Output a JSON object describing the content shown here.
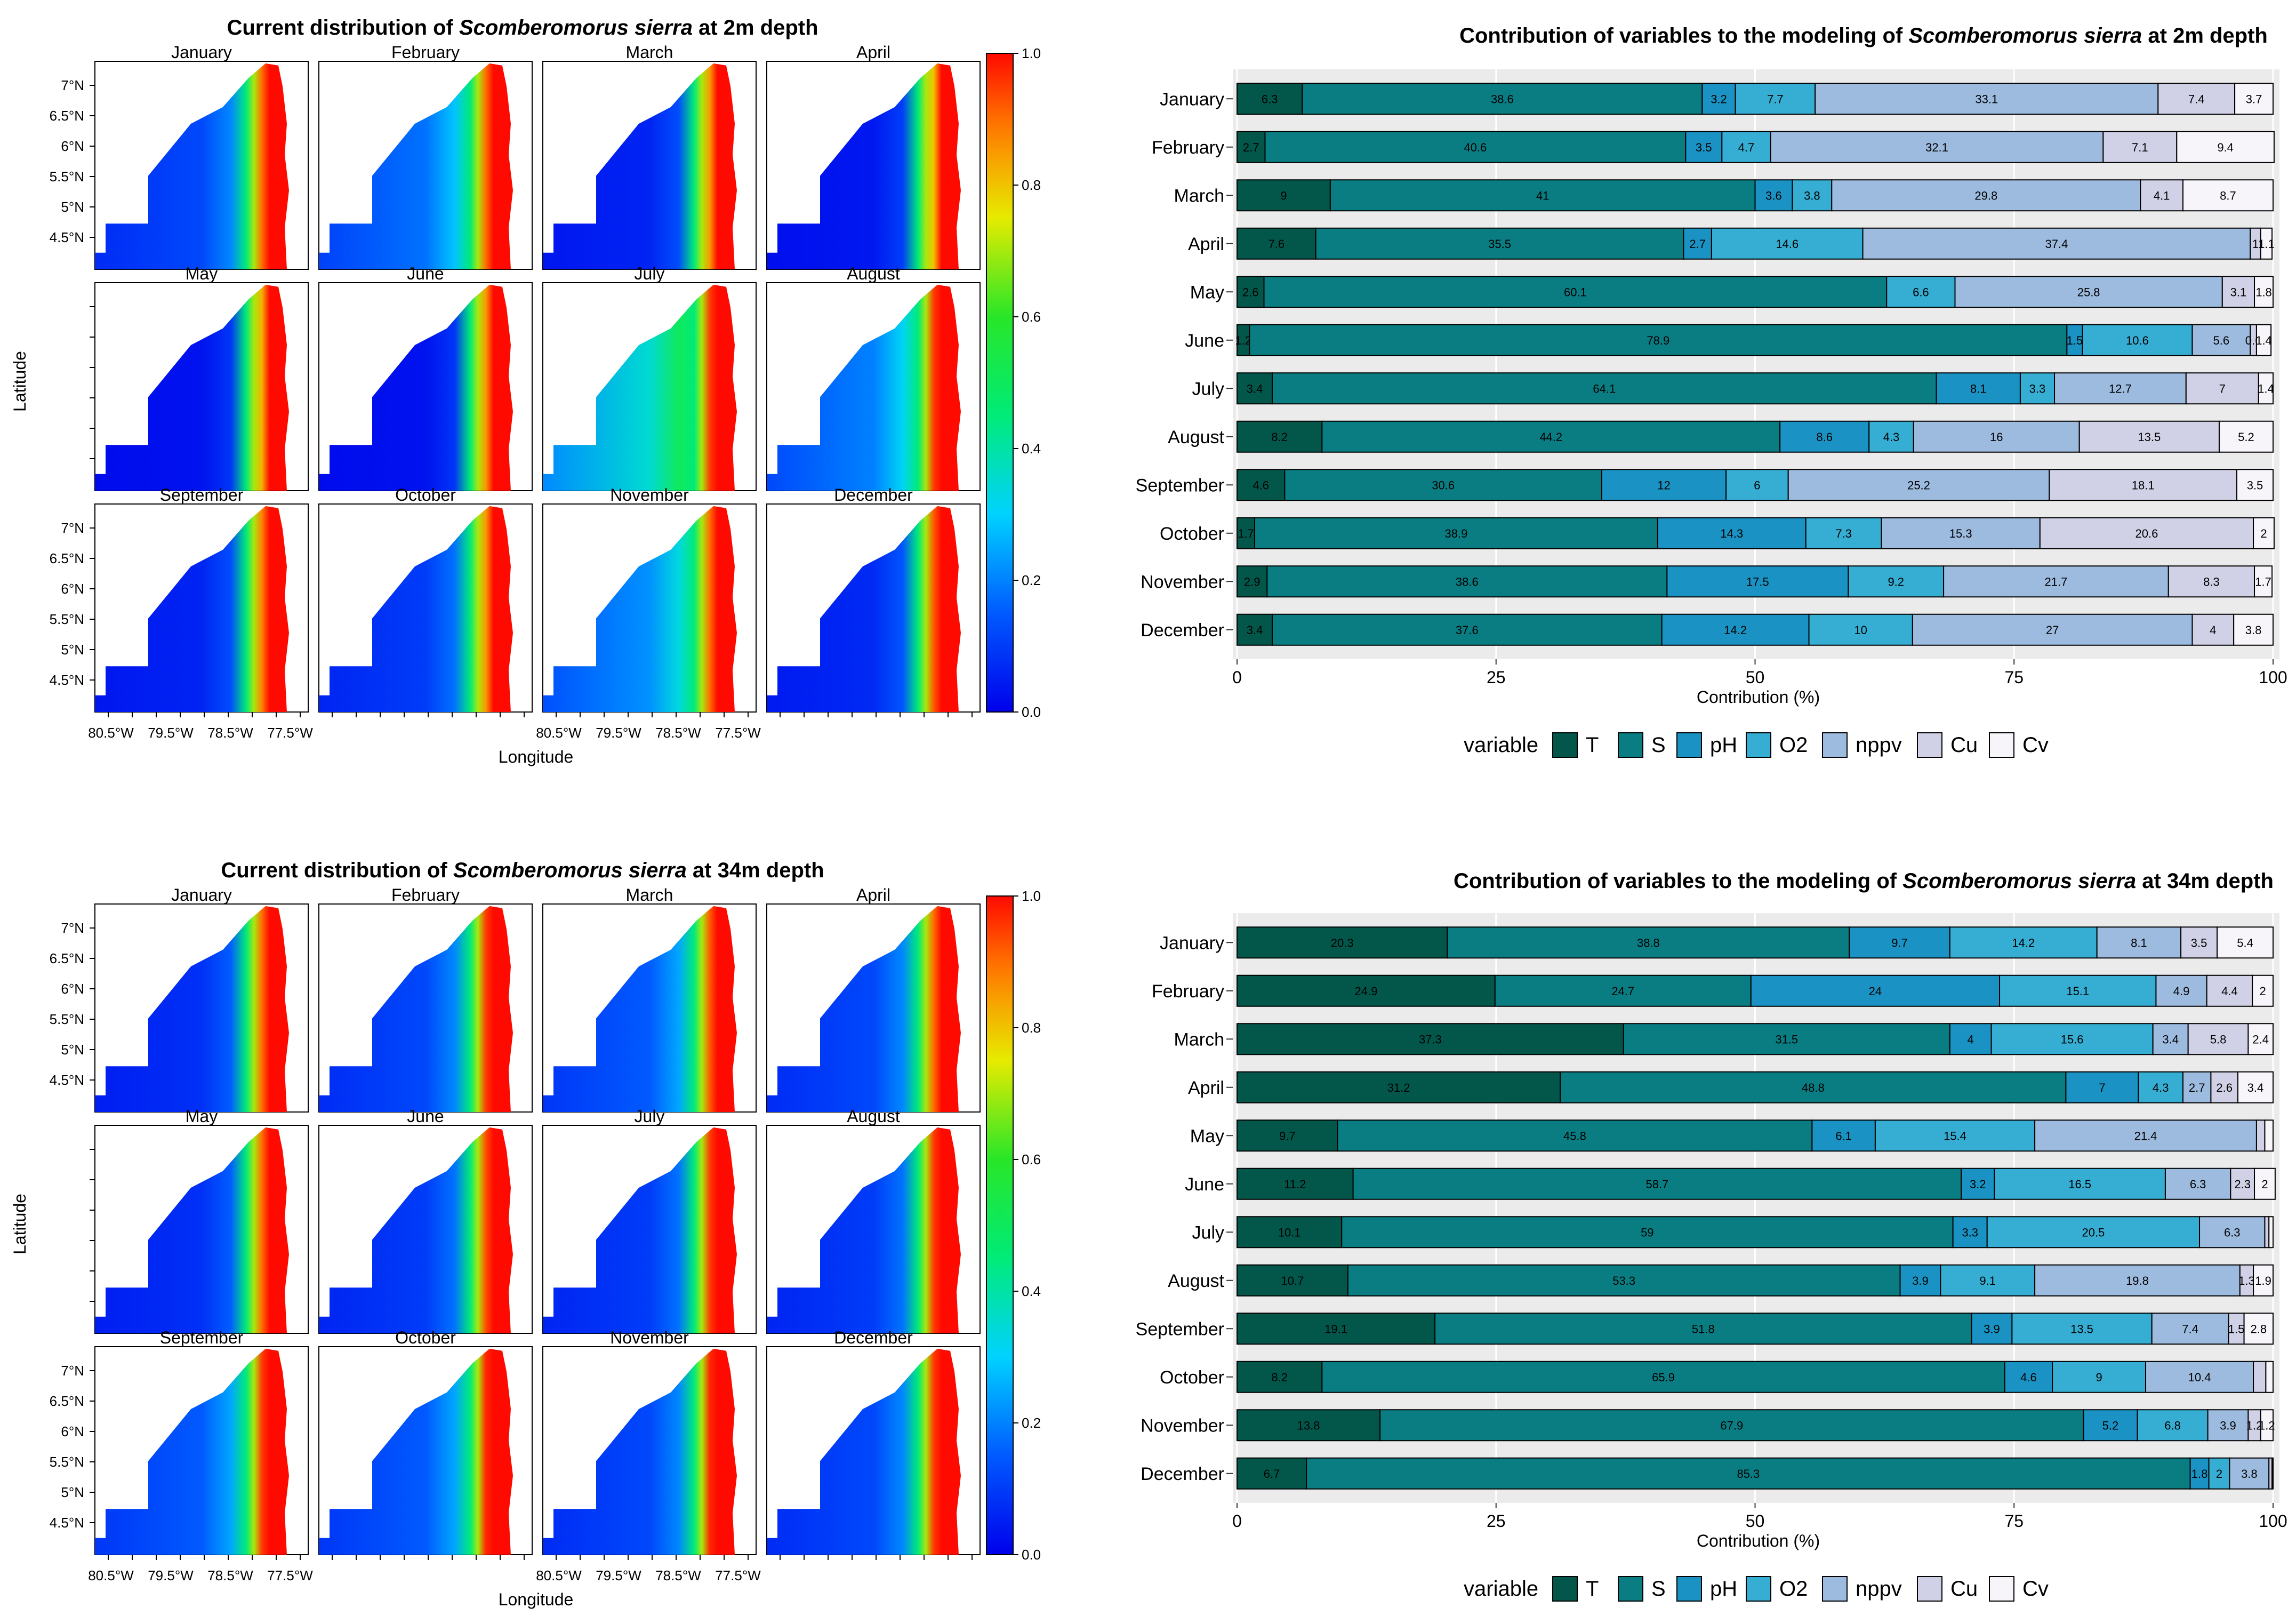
{
  "colors": {
    "T": "#03574a",
    "S": "#0a7d82",
    "pH": "#1a93c4",
    "O2": "#36aed3",
    "nppv": "#9dbbdf",
    "Cu": "#d0d1e6",
    "Cv": "#f7f4fa",
    "ocean": "#0b2de8",
    "land": "#ffffff",
    "bar_bg": "#ebebeb"
  },
  "maps": [
    {
      "title_pre": "Current distribution of ",
      "title_species": "Scomberomorus sierra",
      "title_post": " at 2m depth",
      "xlabel": "Longitude",
      "ylabel": "Latitude",
      "lat_ticks": [
        "7°N",
        "6.5°N",
        "6°N",
        "5.5°N",
        "5°N",
        "4.5°N"
      ],
      "lon_ticks": [
        "80.5°W",
        "79.5°W",
        "78.5°W",
        "77.5°W"
      ],
      "colorbar_ticks": [
        "1.0",
        "0.8",
        "0.6",
        "0.4",
        "0.2",
        "0.0"
      ],
      "panels": [
        {
          "month": "January",
          "offshore": 0.12,
          "coastal": 0.9
        },
        {
          "month": "February",
          "offshore": 0.18,
          "coastal": 0.9
        },
        {
          "month": "March",
          "offshore": 0.06,
          "coastal": 0.85
        },
        {
          "month": "April",
          "offshore": 0.04,
          "coastal": 0.8
        },
        {
          "month": "May",
          "offshore": 0.03,
          "coastal": 0.82
        },
        {
          "month": "June",
          "offshore": 0.03,
          "coastal": 0.85
        },
        {
          "month": "July",
          "offshore": 0.35,
          "coastal": 0.95
        },
        {
          "month": "August",
          "offshore": 0.2,
          "coastal": 0.95
        },
        {
          "month": "September",
          "offshore": 0.06,
          "coastal": 0.88
        },
        {
          "month": "October",
          "offshore": 0.1,
          "coastal": 0.85
        },
        {
          "month": "November",
          "offshore": 0.22,
          "coastal": 0.9
        },
        {
          "month": "December",
          "offshore": 0.07,
          "coastal": 0.92
        }
      ]
    },
    {
      "title_pre": "Current distribution of ",
      "title_species": "Scomberomorus sierra",
      "title_post": " at 34m depth",
      "xlabel": "Longitude",
      "ylabel": "Latitude",
      "lat_ticks": [
        "7°N",
        "6.5°N",
        "6°N",
        "5.5°N",
        "5°N",
        "4.5°N"
      ],
      "lon_ticks": [
        "80.5°W",
        "79.5°W",
        "78.5°W",
        "77.5°W"
      ],
      "colorbar_ticks": [
        "1.0",
        "0.8",
        "0.6",
        "0.4",
        "0.2",
        "0.0"
      ],
      "panels": [
        {
          "month": "January",
          "offshore": 0.08,
          "coastal": 0.9
        },
        {
          "month": "February",
          "offshore": 0.12,
          "coastal": 0.95
        },
        {
          "month": "March",
          "offshore": 0.15,
          "coastal": 0.92
        },
        {
          "month": "April",
          "offshore": 0.12,
          "coastal": 0.9
        },
        {
          "month": "May",
          "offshore": 0.08,
          "coastal": 0.9
        },
        {
          "month": "June",
          "offshore": 0.1,
          "coastal": 0.93
        },
        {
          "month": "July",
          "offshore": 0.1,
          "coastal": 0.95
        },
        {
          "month": "August",
          "offshore": 0.1,
          "coastal": 0.95
        },
        {
          "month": "September",
          "offshore": 0.15,
          "coastal": 0.95
        },
        {
          "month": "October",
          "offshore": 0.15,
          "coastal": 0.97
        },
        {
          "month": "November",
          "offshore": 0.12,
          "coastal": 0.97
        },
        {
          "month": "December",
          "offshore": 0.12,
          "coastal": 0.95
        }
      ]
    }
  ],
  "chart_data": [
    {
      "type": "bar",
      "orientation": "horizontal",
      "stacked": true,
      "title_pre": "Contribution of variables to the modeling of ",
      "title_species": "Scomberomorus sierra",
      "title_post": " at 2m depth",
      "xlabel": "Contribution (%)",
      "ylabel": "",
      "xlim": [
        0,
        100
      ],
      "xticks": [
        0,
        25,
        50,
        75,
        100
      ],
      "legend_title": "variable",
      "legend_position": "bottom",
      "variables": [
        "T",
        "S",
        "pH",
        "O2",
        "nppv",
        "Cu",
        "Cv"
      ],
      "categories": [
        "January",
        "February",
        "March",
        "April",
        "May",
        "June",
        "July",
        "August",
        "September",
        "October",
        "November",
        "December"
      ],
      "series": [
        {
          "name": "T",
          "values": [
            6.3,
            2.7,
            9,
            7.6,
            2.6,
            1.2,
            3.4,
            8.2,
            4.6,
            1.7,
            2.9,
            3.4
          ]
        },
        {
          "name": "S",
          "values": [
            38.6,
            40.6,
            41,
            35.5,
            60.1,
            78.9,
            64.1,
            44.2,
            30.6,
            38.9,
            38.6,
            37.6
          ]
        },
        {
          "name": "pH",
          "values": [
            3.2,
            3.5,
            3.6,
            2.7,
            0,
            1.5,
            8.1,
            8.6,
            12,
            14.3,
            17.5,
            14.2
          ]
        },
        {
          "name": "O2",
          "values": [
            7.7,
            4.7,
            3.8,
            14.6,
            6.6,
            10.6,
            3.3,
            4.3,
            6,
            7.3,
            9.2,
            10
          ]
        },
        {
          "name": "nppv",
          "values": [
            33.1,
            32.1,
            29.8,
            37.4,
            25.8,
            5.6,
            12.7,
            16,
            25.2,
            15.3,
            21.7,
            27
          ]
        },
        {
          "name": "Cu",
          "values": [
            7.4,
            7.1,
            4.1,
            1,
            3.1,
            0.6,
            7,
            13.5,
            18.1,
            20.6,
            8.3,
            4
          ]
        },
        {
          "name": "Cv",
          "values": [
            3.7,
            9.4,
            8.7,
            1.1,
            1.8,
            1.4,
            1.4,
            5.2,
            3.5,
            2,
            1.7,
            3.8
          ]
        }
      ],
      "labels": [
        [
          "6.3",
          "38.6",
          "3.2",
          "7.7",
          "33.1",
          "7.4",
          "3.7"
        ],
        [
          "2.7",
          "40.6",
          "3.5",
          "4.7",
          "32.1",
          "7.1",
          "9.4"
        ],
        [
          "9",
          "41",
          "3.6",
          "3.8",
          "29.8",
          "4.1",
          "8.7"
        ],
        [
          "7.6",
          "35.5",
          "2.7",
          "14.6",
          "37.4",
          "1",
          "1.1"
        ],
        [
          "2.6",
          "60.1",
          "",
          "6.6",
          "25.8",
          "3.1",
          "1.8"
        ],
        [
          "1.2",
          "78.9",
          "1.5",
          "10.6",
          "5.6",
          "0.6",
          "1.4"
        ],
        [
          "3.4",
          "64.1",
          "8.1",
          "3.3",
          "12.7",
          "7",
          "1.4"
        ],
        [
          "8.2",
          "44.2",
          "8.6",
          "4.3",
          "16",
          "13.5",
          "5.2"
        ],
        [
          "4.6",
          "30.6",
          "12",
          "6",
          "25.2",
          "18.1",
          "3.5"
        ],
        [
          "1.7",
          "38.9",
          "14.3",
          "7.3",
          "15.3",
          "20.6",
          "2"
        ],
        [
          "2.9",
          "38.6",
          "17.5",
          "9.2",
          "21.7",
          "8.3",
          "1.7"
        ],
        [
          "3.4",
          "37.6",
          "14.2",
          "10",
          "27",
          "4",
          "3.8"
        ]
      ]
    },
    {
      "type": "bar",
      "orientation": "horizontal",
      "stacked": true,
      "title_pre": "Contribution of variables to the modeling of ",
      "title_species": "Scomberomorus sierra",
      "title_post": " at 34m depth",
      "xlabel": "Contribution (%)",
      "ylabel": "",
      "xlim": [
        0,
        100
      ],
      "xticks": [
        0,
        25,
        50,
        75,
        100
      ],
      "legend_title": "variable",
      "legend_position": "bottom",
      "variables": [
        "T",
        "S",
        "pH",
        "O2",
        "nppv",
        "Cu",
        "Cv"
      ],
      "categories": [
        "January",
        "February",
        "March",
        "April",
        "May",
        "June",
        "July",
        "August",
        "September",
        "October",
        "November",
        "December"
      ],
      "series": [
        {
          "name": "T",
          "values": [
            20.3,
            24.9,
            37.3,
            31.2,
            9.7,
            11.2,
            10.1,
            10.7,
            19.1,
            8.2,
            13.8,
            6.7
          ]
        },
        {
          "name": "S",
          "values": [
            38.8,
            24.7,
            31.5,
            48.8,
            45.8,
            58.7,
            59,
            53.3,
            51.8,
            65.9,
            67.9,
            85.3
          ]
        },
        {
          "name": "pH",
          "values": [
            9.7,
            24,
            4,
            7,
            6.1,
            3.2,
            3.3,
            3.9,
            3.9,
            4.6,
            5.2,
            1.8
          ]
        },
        {
          "name": "O2",
          "values": [
            14.2,
            15.1,
            15.6,
            4.3,
            15.4,
            16.5,
            20.5,
            9.1,
            13.5,
            9,
            6.8,
            2
          ]
        },
        {
          "name": "nppv",
          "values": [
            8.1,
            4.9,
            3.4,
            2.7,
            21.4,
            6.3,
            6.3,
            19.8,
            7.4,
            10.4,
            3.9,
            3.8
          ]
        },
        {
          "name": "Cu",
          "values": [
            3.5,
            4.4,
            5.8,
            2.6,
            0.8,
            2.3,
            0.4,
            1.3,
            1.5,
            1.2,
            1.2,
            0.3
          ]
        },
        {
          "name": "Cv",
          "values": [
            5.4,
            2,
            2.4,
            3.4,
            0.8,
            2,
            0.4,
            1.9,
            2.8,
            0.7,
            1.2,
            0.1
          ]
        }
      ],
      "labels": [
        [
          "20.3",
          "38.8",
          "9.7",
          "14.2",
          "8.1",
          "3.5",
          "5.4"
        ],
        [
          "24.9",
          "24.7",
          "24",
          "15.1",
          "4.9",
          "4.4",
          "2"
        ],
        [
          "37.3",
          "31.5",
          "4",
          "15.6",
          "3.4",
          "5.8",
          "2.4"
        ],
        [
          "31.2",
          "48.8",
          "7",
          "4.3",
          "2.7",
          "2.6",
          "3.4"
        ],
        [
          "9.7",
          "45.8",
          "6.1",
          "15.4",
          "21.4",
          "",
          ""
        ],
        [
          "11.2",
          "58.7",
          "3.2",
          "16.5",
          "6.3",
          "2.3",
          "2"
        ],
        [
          "10.1",
          "59",
          "3.3",
          "20.5",
          "6.3",
          "",
          ""
        ],
        [
          "10.7",
          "53.3",
          "3.9",
          "9.1",
          "19.8",
          "1.3",
          "1.9"
        ],
        [
          "19.1",
          "51.8",
          "3.9",
          "13.5",
          "7.4",
          "1.5",
          "2.8"
        ],
        [
          "8.2",
          "65.9",
          "4.6",
          "9",
          "10.4",
          "",
          ""
        ],
        [
          "13.8",
          "67.9",
          "5.2",
          "6.8",
          "3.9",
          "1.2",
          "1.2"
        ],
        [
          "6.7",
          "85.3",
          "1.8",
          "2",
          "3.8",
          "",
          ""
        ]
      ]
    }
  ]
}
